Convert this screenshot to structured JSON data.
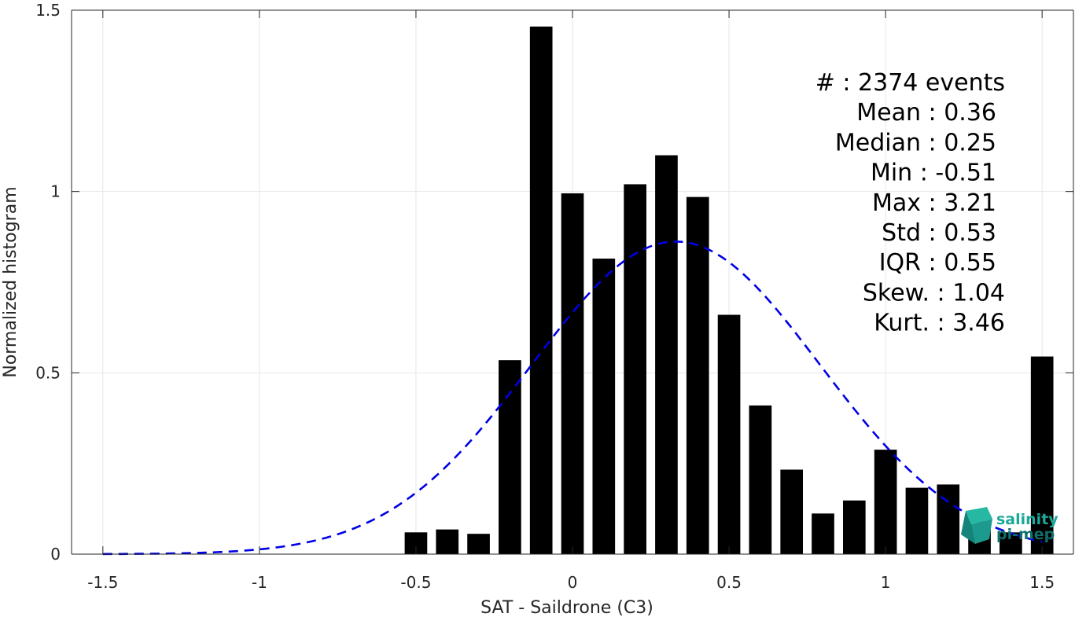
{
  "chart_data": {
    "type": "bar",
    "xlabel": "SAT - Saildrone (C3)",
    "ylabel": "Normalized histogram",
    "xlim": [
      -1.6,
      1.6
    ],
    "ylim": [
      0,
      1.5
    ],
    "grid": true,
    "x_ticks": [
      {
        "value": -1.5,
        "label": "-1.5"
      },
      {
        "value": -1,
        "label": "-1"
      },
      {
        "value": -0.5,
        "label": "-0.5"
      },
      {
        "value": 0,
        "label": "0"
      },
      {
        "value": 0.5,
        "label": "0.5"
      },
      {
        "value": 1,
        "label": "1"
      },
      {
        "value": 1.5,
        "label": "1.5"
      }
    ],
    "y_ticks": [
      {
        "value": 0,
        "label": "0"
      },
      {
        "value": 0.5,
        "label": "0.5"
      },
      {
        "value": 1,
        "label": "1"
      },
      {
        "value": 1.5,
        "label": "1.5"
      }
    ],
    "bin_width": 0.1,
    "bar_fraction": 0.72,
    "bars": {
      "x": [
        -0.5,
        -0.4,
        -0.3,
        -0.2,
        -0.1,
        0.0,
        0.1,
        0.2,
        0.3,
        0.4,
        0.5,
        0.6,
        0.7,
        0.8,
        0.9,
        1.0,
        1.1,
        1.2,
        1.3,
        1.4,
        1.5
      ],
      "values": [
        0.06,
        0.068,
        0.056,
        0.535,
        1.455,
        0.995,
        0.815,
        1.02,
        1.1,
        0.985,
        0.66,
        0.41,
        0.233,
        0.112,
        0.148,
        0.288,
        0.183,
        0.192,
        0.09,
        0.06,
        0.545
      ],
      "color": "#000000"
    },
    "fit_curve": {
      "style": "dashed",
      "color": "#0000e6",
      "mean": 0.33,
      "std": 0.46,
      "peak": 0.862,
      "x_range": [
        -1.5,
        1.5
      ]
    },
    "stats": [
      {
        "label": "#  : 2374 events"
      },
      {
        "label": "Mean : 0.36"
      },
      {
        "label": "Median : 0.25"
      },
      {
        "label": "Min : -0.51"
      },
      {
        "label": "Max : 3.21"
      },
      {
        "label": "Std : 0.53"
      },
      {
        "label": "IQR : 0.55"
      },
      {
        "label": "Skew. : 1.04"
      },
      {
        "label": "Kurt. : 3.46"
      }
    ]
  },
  "logo": {
    "line1": "salinity",
    "line2": "pi-mep",
    "color_primary": "#1aa89a",
    "color_secondary": "#0e6e6a"
  }
}
